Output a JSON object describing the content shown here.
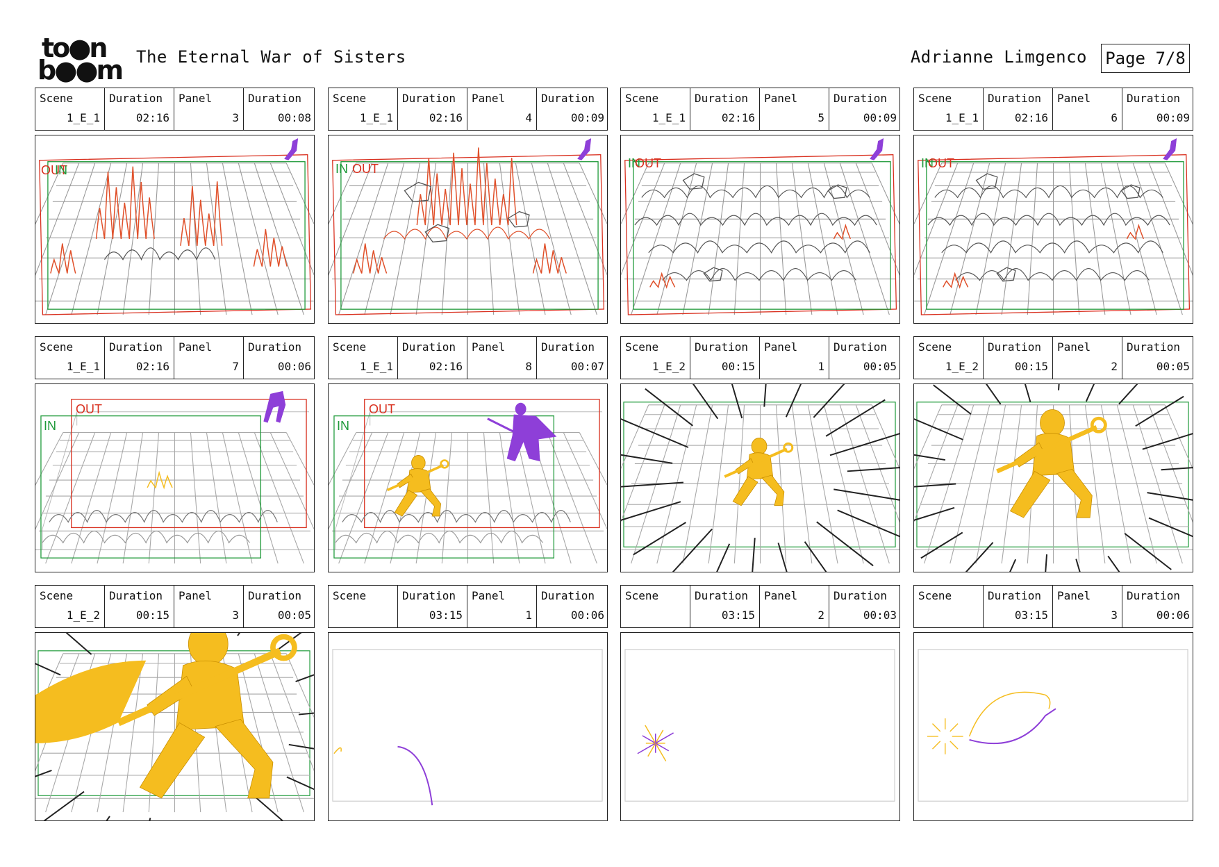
{
  "header": {
    "logo_line1": "to●n",
    "logo_line2": "b●●m",
    "title": "The Eternal War of Sisters",
    "author": "Adrianne Limgenco",
    "page": "Page 7/8"
  },
  "labels": {
    "scene": "Scene",
    "duration": "Duration",
    "panel": "Panel",
    "in": "IN",
    "out": "OUT"
  },
  "colors": {
    "out": "#d9301f",
    "in": "#1f9a3a",
    "sketch_red": "#e0502a",
    "yellow": "#f5bd1f",
    "purple": "#8e3fd8",
    "grid": "#9a9a9a",
    "ink": "#222222"
  },
  "panels": [
    {
      "scene": "1_E_1",
      "scene_duration": "02:16",
      "panel": "3",
      "panel_duration": "00:08",
      "art": "fire-grid",
      "labels": [
        "OUT",
        "IN"
      ]
    },
    {
      "scene": "1_E_1",
      "scene_duration": "02:16",
      "panel": "4",
      "panel_duration": "00:09",
      "art": "fire-rocks",
      "labels": [
        "IN",
        "OUT"
      ]
    },
    {
      "scene": "1_E_1",
      "scene_duration": "02:16",
      "panel": "5",
      "panel_duration": "00:09",
      "art": "rubble",
      "labels": [
        "IN",
        "OUT"
      ]
    },
    {
      "scene": "1_E_1",
      "scene_duration": "02:16",
      "panel": "6",
      "panel_duration": "00:09",
      "art": "rubble",
      "labels": [
        "IN",
        "OUT"
      ]
    },
    {
      "scene": "1_E_1",
      "scene_duration": "02:16",
      "panel": "7",
      "panel_duration": "00:06",
      "art": "box-grid",
      "labels": [
        "OUT",
        "IN"
      ]
    },
    {
      "scene": "1_E_1",
      "scene_duration": "02:16",
      "panel": "8",
      "panel_duration": "00:07",
      "art": "box-characters",
      "labels": [
        "OUT",
        "IN"
      ]
    },
    {
      "scene": "1_E_2",
      "scene_duration": "00:15",
      "panel": "1",
      "panel_duration": "00:05",
      "art": "speedlines-small",
      "labels": []
    },
    {
      "scene": "1_E_2",
      "scene_duration": "00:15",
      "panel": "2",
      "panel_duration": "00:05",
      "art": "speedlines-mid",
      "labels": []
    },
    {
      "scene": "1_E_2",
      "scene_duration": "00:15",
      "panel": "3",
      "panel_duration": "00:05",
      "art": "speedlines-close",
      "labels": []
    },
    {
      "scene": "",
      "scene_duration": "03:15",
      "panel": "1",
      "panel_duration": "00:06",
      "art": "blank-purple-arc",
      "labels": []
    },
    {
      "scene": "",
      "scene_duration": "03:15",
      "panel": "2",
      "panel_duration": "00:03",
      "art": "blank-burst",
      "labels": []
    },
    {
      "scene": "",
      "scene_duration": "03:15",
      "panel": "3",
      "panel_duration": "00:06",
      "art": "blank-swing",
      "labels": []
    }
  ]
}
